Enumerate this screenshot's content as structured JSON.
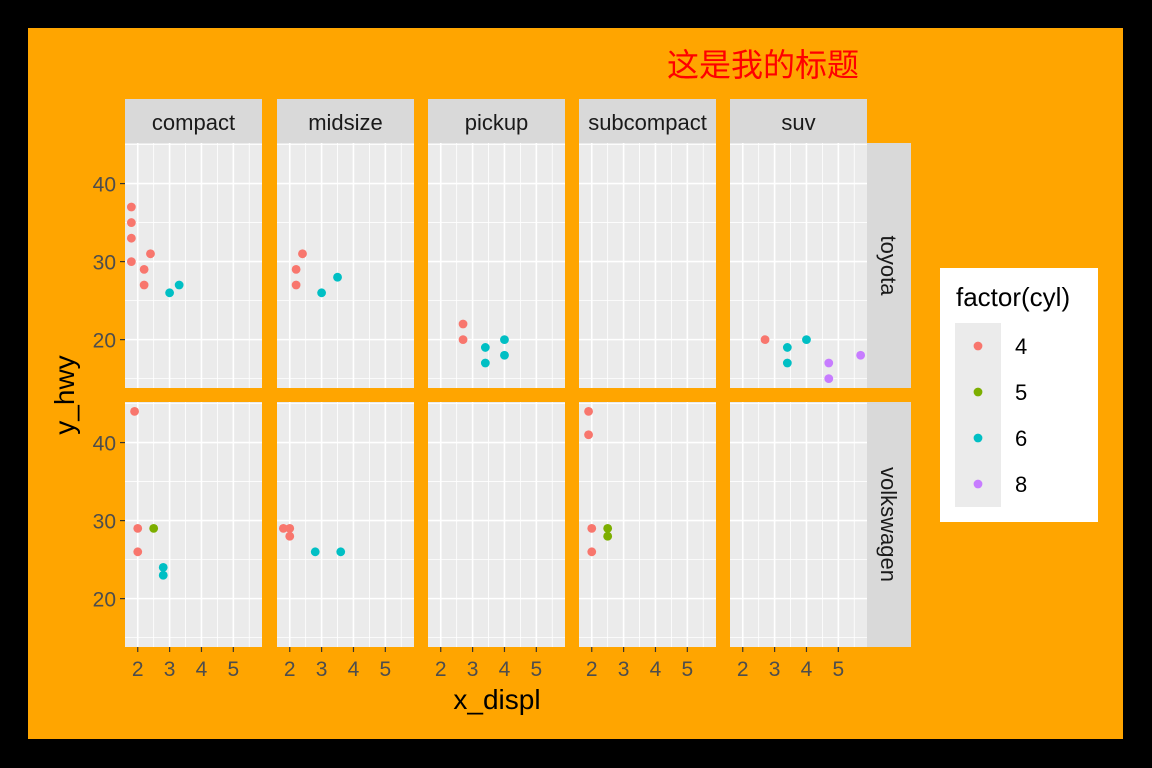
{
  "title": "这是我的标题",
  "colors": {
    "outer_background": "#000000",
    "plot_background": "#FFA500",
    "panel_background": "#EBEBEB",
    "strip_background": "#D9D9D9",
    "grid_major": "#FFFFFF",
    "title_color": "#FF0000",
    "cyl_4": "#F8766D",
    "cyl_5": "#7CAE00",
    "cyl_6": "#00BFC4",
    "cyl_8": "#C77CFF"
  },
  "legend": {
    "title": "factor(cyl)",
    "position": "right",
    "items": [
      {
        "label": "4",
        "color": "#F8766D"
      },
      {
        "label": "5",
        "color": "#7CAE00"
      },
      {
        "label": "6",
        "color": "#00BFC4"
      },
      {
        "label": "8",
        "color": "#C77CFF"
      }
    ]
  },
  "chart_data": {
    "type": "scatter",
    "title": "这是我的标题",
    "xlabel": "x_displ",
    "ylabel": "y_hwy",
    "xlim": [
      1.6,
      5.9
    ],
    "ylim": [
      13.8,
      45.2
    ],
    "x_ticks": [
      2,
      3,
      4,
      5
    ],
    "y_ticks": [
      20,
      30,
      40
    ],
    "grid": true,
    "facet_cols": [
      "compact",
      "midsize",
      "pickup",
      "subcompact",
      "suv"
    ],
    "facet_rows": [
      "toyota",
      "volkswagen"
    ],
    "color_by": "factor(cyl)",
    "panels": [
      {
        "row": "toyota",
        "col": "compact",
        "points": [
          {
            "x": 1.8,
            "y": 37,
            "cyl": "4"
          },
          {
            "x": 1.8,
            "y": 35,
            "cyl": "4"
          },
          {
            "x": 1.8,
            "y": 33,
            "cyl": "4"
          },
          {
            "x": 1.8,
            "y": 30,
            "cyl": "4"
          },
          {
            "x": 2.2,
            "y": 29,
            "cyl": "4"
          },
          {
            "x": 2.2,
            "y": 27,
            "cyl": "4"
          },
          {
            "x": 2.4,
            "y": 31,
            "cyl": "4"
          },
          {
            "x": 3.0,
            "y": 26,
            "cyl": "6"
          },
          {
            "x": 3.3,
            "y": 27,
            "cyl": "6"
          }
        ]
      },
      {
        "row": "toyota",
        "col": "midsize",
        "points": [
          {
            "x": 2.2,
            "y": 29,
            "cyl": "4"
          },
          {
            "x": 2.2,
            "y": 27,
            "cyl": "4"
          },
          {
            "x": 2.4,
            "y": 31,
            "cyl": "4"
          },
          {
            "x": 3.0,
            "y": 26,
            "cyl": "6"
          },
          {
            "x": 3.5,
            "y": 28,
            "cyl": "6"
          }
        ]
      },
      {
        "row": "toyota",
        "col": "pickup",
        "points": [
          {
            "x": 2.7,
            "y": 22,
            "cyl": "4"
          },
          {
            "x": 2.7,
            "y": 20,
            "cyl": "4"
          },
          {
            "x": 3.4,
            "y": 19,
            "cyl": "6"
          },
          {
            "x": 3.4,
            "y": 17,
            "cyl": "6"
          },
          {
            "x": 4.0,
            "y": 20,
            "cyl": "6"
          },
          {
            "x": 4.0,
            "y": 18,
            "cyl": "6"
          }
        ]
      },
      {
        "row": "toyota",
        "col": "subcompact",
        "points": []
      },
      {
        "row": "toyota",
        "col": "suv",
        "points": [
          {
            "x": 2.7,
            "y": 20,
            "cyl": "4"
          },
          {
            "x": 3.4,
            "y": 19,
            "cyl": "6"
          },
          {
            "x": 3.4,
            "y": 17,
            "cyl": "6"
          },
          {
            "x": 4.0,
            "y": 20,
            "cyl": "6"
          },
          {
            "x": 4.7,
            "y": 17,
            "cyl": "8"
          },
          {
            "x": 4.7,
            "y": 15,
            "cyl": "8"
          },
          {
            "x": 5.7,
            "y": 18,
            "cyl": "8"
          }
        ]
      },
      {
        "row": "volkswagen",
        "col": "compact",
        "points": [
          {
            "x": 1.9,
            "y": 44,
            "cyl": "4"
          },
          {
            "x": 2.0,
            "y": 29,
            "cyl": "4"
          },
          {
            "x": 2.0,
            "y": 26,
            "cyl": "4"
          },
          {
            "x": 2.5,
            "y": 29,
            "cyl": "5"
          },
          {
            "x": 2.8,
            "y": 24,
            "cyl": "6"
          },
          {
            "x": 2.8,
            "y": 23,
            "cyl": "6"
          }
        ]
      },
      {
        "row": "volkswagen",
        "col": "midsize",
        "points": [
          {
            "x": 1.8,
            "y": 29,
            "cyl": "4"
          },
          {
            "x": 2.0,
            "y": 29,
            "cyl": "4"
          },
          {
            "x": 2.0,
            "y": 28,
            "cyl": "4"
          },
          {
            "x": 2.8,
            "y": 26,
            "cyl": "6"
          },
          {
            "x": 3.6,
            "y": 26,
            "cyl": "6"
          }
        ]
      },
      {
        "row": "volkswagen",
        "col": "pickup",
        "points": []
      },
      {
        "row": "volkswagen",
        "col": "subcompact",
        "points": [
          {
            "x": 1.9,
            "y": 44,
            "cyl": "4"
          },
          {
            "x": 1.9,
            "y": 41,
            "cyl": "4"
          },
          {
            "x": 2.0,
            "y": 29,
            "cyl": "4"
          },
          {
            "x": 2.0,
            "y": 26,
            "cyl": "4"
          },
          {
            "x": 2.5,
            "y": 29,
            "cyl": "5"
          },
          {
            "x": 2.5,
            "y": 28,
            "cyl": "5"
          }
        ]
      },
      {
        "row": "volkswagen",
        "col": "suv",
        "points": []
      }
    ]
  }
}
